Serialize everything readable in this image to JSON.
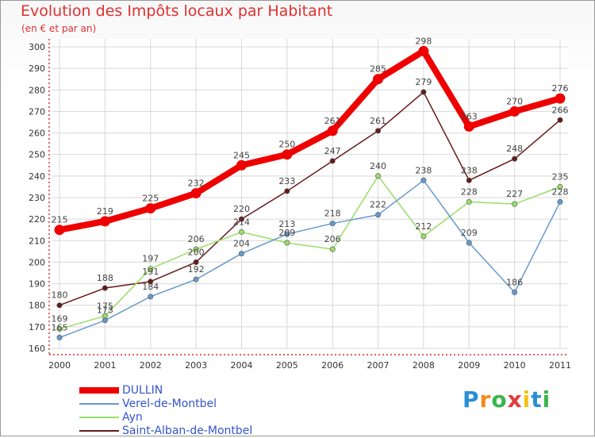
{
  "header": {
    "title": "Evolution des Impôts locaux par Habitant",
    "subtitle": "(en € et par an)"
  },
  "logo": {
    "text": "Proxiti",
    "colors": [
      "#2a8fd6",
      "#f28c1a",
      "#3ab54a",
      "#e23b3b",
      "#f2c31a",
      "#2a8fd6",
      "#3ab54a"
    ]
  },
  "chart_data": {
    "type": "line",
    "title": "Evolution des Impôts locaux par Habitant",
    "subtitle": "(en € et par an)",
    "x": [
      "2000",
      "2001",
      "2002",
      "2003",
      "2004",
      "2005",
      "2006",
      "2007",
      "2008",
      "2009",
      "2010",
      "2011"
    ],
    "ylim": [
      160,
      300
    ],
    "yticks": [
      160,
      170,
      180,
      190,
      200,
      210,
      220,
      230,
      240,
      250,
      260,
      270,
      280,
      290,
      300
    ],
    "grid": true,
    "legend_position": "bottom-left",
    "series": [
      {
        "name": "DULLIN",
        "color": "#ee0000",
        "values": [
          215,
          219,
          225,
          232,
          245,
          250,
          261,
          285,
          298,
          263,
          270,
          276
        ]
      },
      {
        "name": "Verel-de-Montbel",
        "color": "#6699cc",
        "values": [
          165,
          173,
          184,
          192,
          204,
          213,
          218,
          222,
          238,
          209,
          186,
          228
        ]
      },
      {
        "name": "Ayn",
        "color": "#99dd66",
        "values": [
          169,
          175,
          197,
          206,
          214,
          209,
          206,
          240,
          212,
          228,
          227,
          235
        ]
      },
      {
        "name": "Saint-Alban-de-Montbel",
        "color": "#661a1a",
        "values": [
          180,
          188,
          191,
          200,
          220,
          233,
          247,
          261,
          279,
          238,
          248,
          266
        ]
      }
    ]
  }
}
